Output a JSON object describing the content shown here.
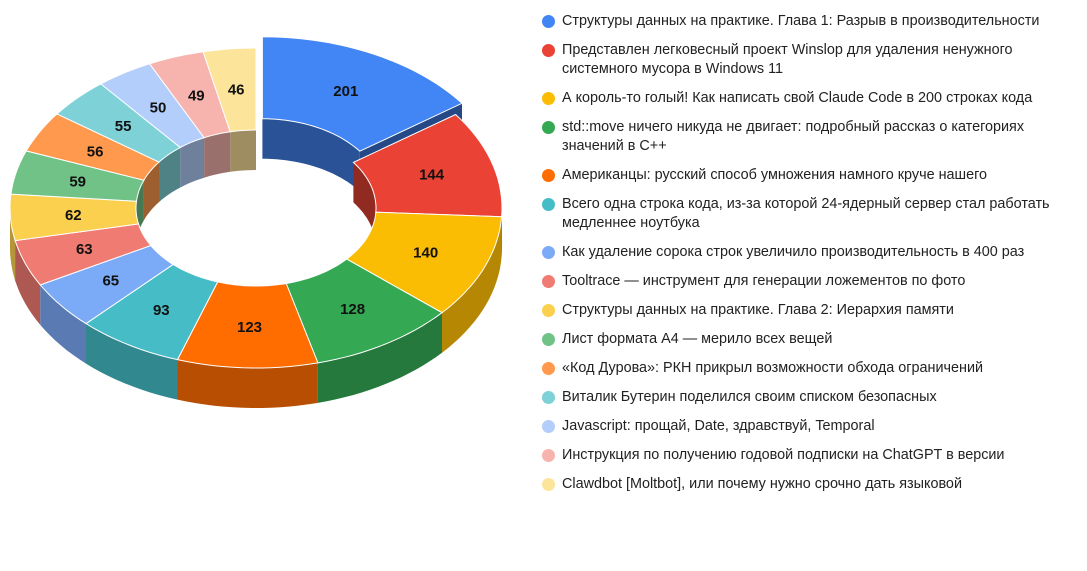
{
  "chart_data": {
    "type": "pie",
    "variant": "3d-donut",
    "title": "",
    "legend_position": "right",
    "slices": [
      {
        "label": "Структуры данных на практике. Глава 1: Разрыв в производительности",
        "value": 201,
        "color": "#4285F4"
      },
      {
        "label": "Представлен легковесный проект Winslop для удаления ненужного системного мусора в Windows 11",
        "value": 144,
        "color": "#EA4335"
      },
      {
        "label": "А король-то голый! Как написать свой Claude Code в 200 строках кода",
        "value": 140,
        "color": "#FBBC04"
      },
      {
        "label": "std::move ничего никуда не двигает: подробный рассказ о категориях значений в C++",
        "value": 128,
        "color": "#34A853"
      },
      {
        "label": "Американцы: русский способ умножения намного круче нашего",
        "value": 123,
        "color": "#FF6D01"
      },
      {
        "label": "Всего одна строка кода, из-за которой 24-ядерный сервер стал работать медленнее ноутбука",
        "value": 93,
        "color": "#46BDC6"
      },
      {
        "label": "Как удаление сорока строк увеличило производительность в 400 раз",
        "value": 65,
        "color": "#7BAAF7"
      },
      {
        "label": "Tooltrace — инструмент для генерации ложементов по фото",
        "value": 63,
        "color": "#F07B72"
      },
      {
        "label": "Структуры данных на практике. Глава 2: Иерархия памяти",
        "value": 62,
        "color": "#FCD04F"
      },
      {
        "label": "Лист формата А4 — мерило всех вещей",
        "value": 59,
        "color": "#71C287"
      },
      {
        "label": "«Код Дурова»: РКН прикрыл возможности обхода ограничений",
        "value": 56,
        "color": "#FF994D"
      },
      {
        "label": "Виталик Бутерин поделился своим списком безопасных",
        "value": 55,
        "color": "#7ED1D7"
      },
      {
        "label": "Javascript: прощай, Date, здравствуй, Temporal",
        "value": 50,
        "color": "#B3CEFB"
      },
      {
        "label": "Инструкция по получению годовой подписки на ChatGPT в версии",
        "value": 49,
        "color": "#F7B4AE"
      },
      {
        "label": "Clawdbot [Moltbot], или почему нужно срочно дать языковой",
        "value": 46,
        "color": "#FDE49B"
      }
    ]
  }
}
